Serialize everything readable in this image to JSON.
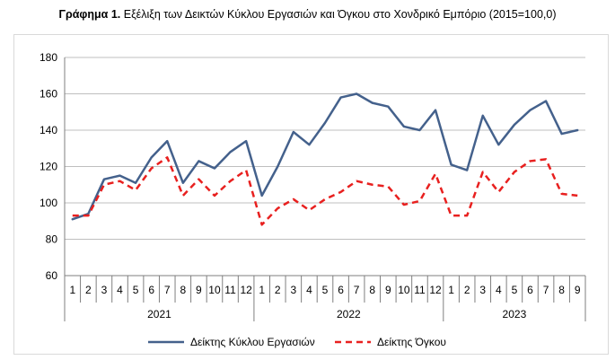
{
  "title": {
    "prefix": "Γράφημα 1.",
    "text": "Εξέλιξη των Δεικτών Κύκλου Εργασιών και Όγκου στο Χονδρικό Εμπόριο (2015=100,0)"
  },
  "chart_data": {
    "type": "line",
    "title": "Γράφημα 1. Εξέλιξη των Δεικτών Κύκλου Εργασιών και Όγκου στο Χονδρικό Εμπόριο (2015=100,0)",
    "ylim": [
      60,
      180
    ],
    "yticks": [
      60,
      80,
      100,
      120,
      140,
      160,
      180
    ],
    "grid": true,
    "legend_position": "bottom",
    "categories": [
      "1",
      "2",
      "3",
      "4",
      "5",
      "6",
      "7",
      "8",
      "9",
      "10",
      "11",
      "12",
      "1",
      "2",
      "3",
      "4",
      "5",
      "6",
      "7",
      "8",
      "9",
      "10",
      "11",
      "12",
      "1",
      "2",
      "3",
      "4",
      "5",
      "6",
      "7",
      "8",
      "9"
    ],
    "year_groups": [
      {
        "label": "2021",
        "count": 12
      },
      {
        "label": "2022",
        "count": 12
      },
      {
        "label": "2023",
        "count": 9
      }
    ],
    "series": [
      {
        "name": "Δείκτης Κύκλου Εργασιών",
        "color": "#44618c",
        "style": "solid",
        "values": [
          91,
          94,
          113,
          115,
          111,
          125,
          134,
          111,
          123,
          119,
          128,
          134,
          104,
          120,
          139,
          132,
          144,
          158,
          160,
          155,
          153,
          142,
          140,
          151,
          121,
          118,
          148,
          132,
          143,
          151,
          156,
          138,
          140
        ]
      },
      {
        "name": "Δείκτης Όγκου",
        "color": "#e8201f",
        "style": "dashed",
        "values": [
          93,
          93,
          110,
          112,
          107,
          119,
          125,
          104,
          113,
          104,
          112,
          118,
          88,
          97,
          102,
          96,
          102,
          106,
          112,
          110,
          109,
          99,
          101,
          116,
          93,
          93,
          117,
          106,
          117,
          123,
          124,
          105,
          104
        ]
      }
    ]
  }
}
